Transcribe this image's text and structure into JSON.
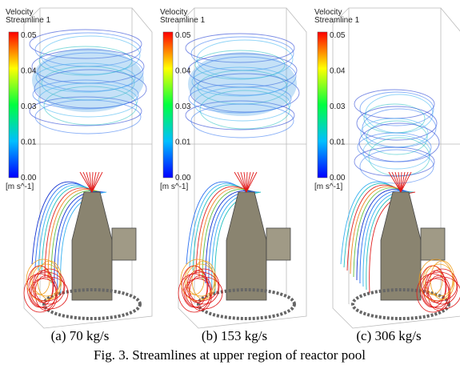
{
  "panels": [
    {
      "legend_title": "Velocity",
      "legend_subtitle": "Streamline 1",
      "ticks": [
        "0.05",
        "0.04",
        "0.03",
        "0.01",
        "0.00"
      ],
      "unit": "[m s^-1]",
      "caption": "(a) 70 kg/s"
    },
    {
      "legend_title": "Velocity",
      "legend_subtitle": "Streamline 1",
      "ticks": [
        "0.05",
        "0.04",
        "0.03",
        "0.01",
        "0.00"
      ],
      "unit": "[m s^-1]",
      "caption": "(b) 153 kg/s"
    },
    {
      "legend_title": "Velocity",
      "legend_subtitle": "Streamline 1",
      "ticks": [
        "0.05",
        "0.04",
        "0.03",
        "0.01",
        "0.00"
      ],
      "unit": "[m s^-1]",
      "caption": "(c) 306 kg/s"
    }
  ],
  "caption": "Fig. 3. Streamlines at upper region of reactor pool"
}
